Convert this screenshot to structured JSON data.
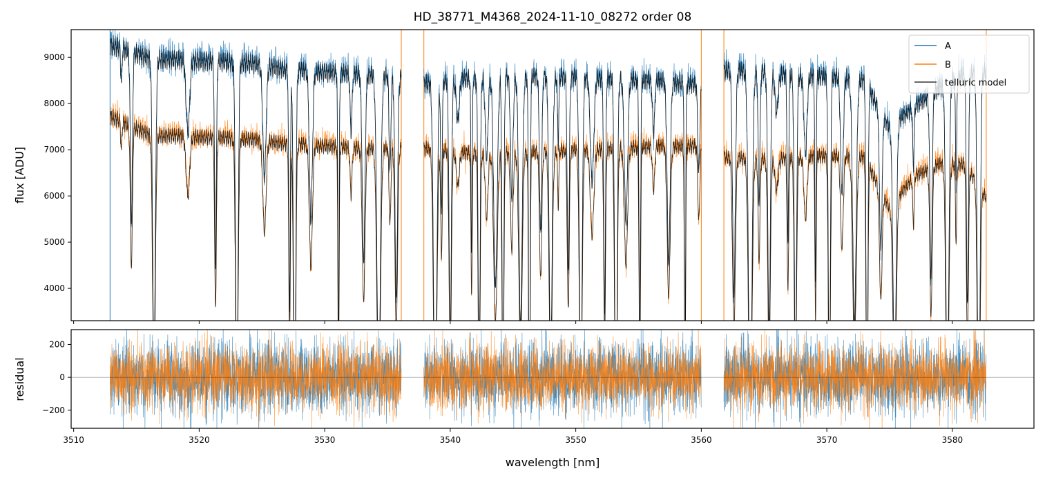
{
  "chart_data": [
    {
      "type": "line",
      "panel": "main",
      "title": "HD_38771_M4368_2024-11-10_08272  order 08",
      "xlabel": "",
      "ylabel": "flux [ADU]",
      "xlim": [
        3509.8,
        3586.5
      ],
      "ylim": [
        3300,
        9600
      ],
      "yticks": [
        4000,
        5000,
        6000,
        7000,
        8000,
        9000
      ],
      "grid": false,
      "legend_position": "top-right",
      "legend": [
        "A",
        "B",
        "telluric model"
      ],
      "segments": [
        [
          3512.9,
          3536.1
        ],
        [
          3537.9,
          3560.0
        ],
        [
          3561.8,
          3582.7
        ]
      ],
      "edge_spikes": [
        3512.9,
        3536.1,
        3537.9,
        3560.0,
        3561.8,
        3582.7
      ],
      "series": [
        {
          "name": "A",
          "color": "#1f77b4",
          "x": [
            3513,
            3516,
            3520,
            3524,
            3527,
            3530,
            3533,
            3535.5,
            3538,
            3541,
            3545,
            3549,
            3553,
            3557,
            3560,
            3562,
            3565,
            3568,
            3571,
            3573,
            3575,
            3577,
            3579,
            3581,
            3582.7
          ],
          "y": [
            9550,
            9250,
            9200,
            9150,
            9000,
            8950,
            8900,
            8850,
            8700,
            8800,
            8850,
            8850,
            8800,
            8750,
            8650,
            9000,
            8950,
            8850,
            8850,
            8750,
            7700,
            8200,
            8600,
            8900,
            8950
          ]
        },
        {
          "name": "B",
          "color": "#ff7f0e",
          "x": [
            3513,
            3516,
            3520,
            3524,
            3527,
            3530,
            3533,
            3535.5,
            3538,
            3541,
            3545,
            3549,
            3553,
            3557,
            3560,
            3562,
            3565,
            3568,
            3571,
            3573,
            3575,
            3577,
            3579,
            3581,
            3582.7
          ],
          "y": [
            7950,
            7550,
            7500,
            7450,
            7350,
            7300,
            7250,
            7250,
            7250,
            7150,
            7150,
            7200,
            7250,
            7300,
            7300,
            7050,
            7000,
            7050,
            7100,
            7050,
            5900,
            6650,
            6900,
            6900,
            6150
          ]
        },
        {
          "name": "telluric model",
          "color": "#000000",
          "x": [
            3513,
            3516,
            3520,
            3524,
            3527,
            3530,
            3533,
            3535.5,
            3538,
            3541,
            3545,
            3549,
            3553,
            3557,
            3560,
            3562,
            3565,
            3568,
            3571,
            3573,
            3575,
            3577,
            3579,
            3581,
            3582.7
          ],
          "y": [
            9500,
            9200,
            9150,
            9100,
            8950,
            8900,
            8850,
            8800,
            8650,
            8750,
            8800,
            8800,
            8750,
            8700,
            8600,
            8950,
            8900,
            8800,
            8800,
            8700,
            7650,
            8150,
            8550,
            8850,
            8900
          ]
        }
      ],
      "absorption_lines_nm": [
        3513.8,
        3514.6,
        3516.4,
        3519.1,
        3521.3,
        3523.0,
        3525.2,
        3527.2,
        3527.6,
        3528.9,
        3531.1,
        3532.1,
        3533.1,
        3534.3,
        3535.2,
        3535.7,
        3538.8,
        3539.3,
        3540.0,
        3540.6,
        3541.7,
        3542.3,
        3542.9,
        3543.6,
        3544.2,
        3544.9,
        3545.6,
        3546.3,
        3547.2,
        3548.0,
        3548.6,
        3549.4,
        3550.4,
        3551.3,
        3552.3,
        3553.2,
        3554.0,
        3555.1,
        3556.2,
        3557.4,
        3558.7,
        3559.8,
        3562.6,
        3563.9,
        3564.6,
        3565.4,
        3566.0,
        3566.9,
        3567.5,
        3568.3,
        3569.1,
        3570.2,
        3571.2,
        3572.2,
        3573.2,
        3574.3,
        3575.4,
        3576.9,
        3578.3,
        3579.6,
        3580.3,
        3581.2,
        3582.1
      ]
    },
    {
      "type": "line",
      "panel": "residual",
      "xlabel": "wavelength [nm]",
      "ylabel": "residual",
      "xlim": [
        3509.8,
        3586.5
      ],
      "ylim": [
        -310,
        290
      ],
      "xticks": [
        3510,
        3520,
        3530,
        3540,
        3550,
        3560,
        3570,
        3580
      ],
      "yticks": [
        -200,
        0,
        200
      ],
      "zero_line": true,
      "grid": false,
      "series": [
        {
          "name": "A",
          "color": "#1f77b4",
          "noise_amplitude": 110
        },
        {
          "name": "B",
          "color": "#ff7f0e",
          "noise_amplitude": 100
        }
      ]
    }
  ]
}
